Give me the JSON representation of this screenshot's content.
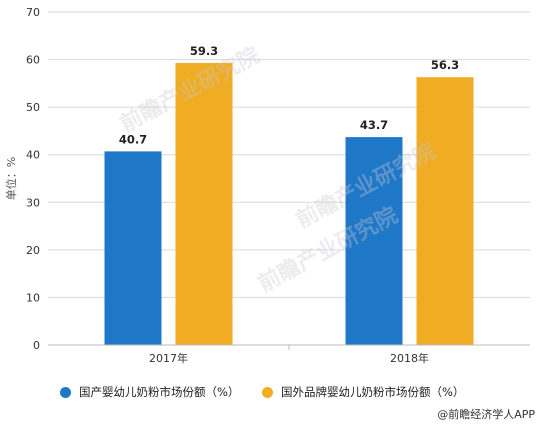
{
  "chart_data": {
    "type": "bar",
    "categories": [
      "2017年",
      "2018年"
    ],
    "series": [
      {
        "name": "国产婴幼儿奶粉市场份额（%）",
        "values": [
          40.7,
          43.7
        ],
        "color": "#1f77c8"
      },
      {
        "name": "国外品牌婴幼儿奶粉市场份额（%）",
        "values": [
          59.3,
          56.3
        ],
        "color": "#f0ac22"
      }
    ],
    "y_ticks": [
      "0",
      "10",
      "20",
      "30",
      "40",
      "50",
      "60",
      "70"
    ],
    "ylabel": "单位：%",
    "xlabel": "",
    "ylim": [
      0,
      70
    ],
    "grid": true,
    "legend_position": "bottom"
  },
  "watermark": "前瞻产业研究院",
  "source": "@前瞻经济学人APP"
}
